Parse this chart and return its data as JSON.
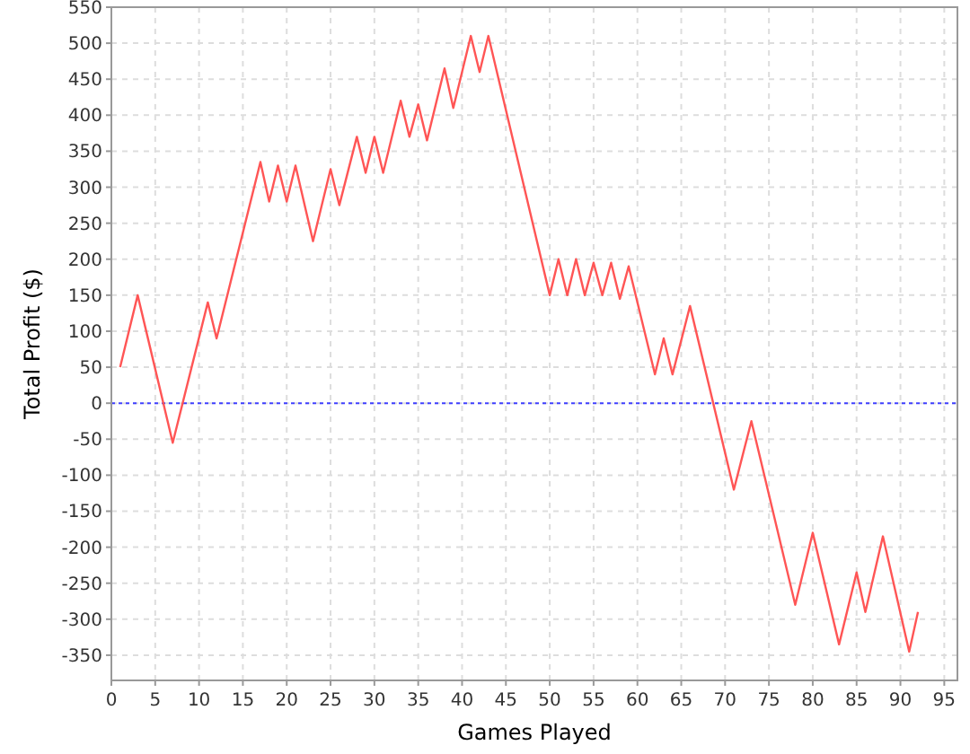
{
  "chart_data": {
    "type": "line",
    "xlabel": "Games Played",
    "ylabel": "Total Profit ($)",
    "xlim": [
      0,
      96.5
    ],
    "ylim": [
      -385,
      550
    ],
    "xticks": [
      0,
      5,
      10,
      15,
      20,
      25,
      30,
      35,
      40,
      45,
      50,
      55,
      60,
      65,
      70,
      75,
      80,
      85,
      90,
      95
    ],
    "yticks": [
      -350,
      -300,
      -250,
      -200,
      -150,
      -100,
      -50,
      0,
      50,
      100,
      150,
      200,
      250,
      300,
      350,
      400,
      450,
      500,
      550
    ],
    "grid": true,
    "ref_lines": [
      {
        "axis": "y",
        "value": 0,
        "color": "#4040ff",
        "line_style": "dotted"
      }
    ],
    "series": [
      {
        "color": "#ff5555",
        "x": [
          1,
          3,
          7,
          11,
          12,
          17,
          18,
          19,
          20,
          21,
          23,
          25,
          26,
          28,
          29,
          30,
          31,
          33,
          34,
          35,
          36,
          38,
          39,
          41,
          42,
          43,
          50,
          51,
          52,
          53,
          54,
          55,
          56,
          57,
          58,
          59,
          62,
          63,
          64,
          66,
          71,
          73,
          78,
          80,
          83,
          85,
          86,
          88,
          91,
          92
        ],
        "values": [
          50,
          150,
          -55,
          140,
          90,
          335,
          280,
          330,
          280,
          330,
          225,
          325,
          275,
          370,
          320,
          370,
          320,
          420,
          370,
          415,
          365,
          465,
          410,
          510,
          460,
          510,
          150,
          200,
          150,
          200,
          150,
          195,
          150,
          195,
          145,
          190,
          40,
          90,
          40,
          135,
          -120,
          -25,
          -280,
          -180,
          -335,
          -235,
          -290,
          -185,
          -345,
          -290
        ]
      }
    ]
  }
}
